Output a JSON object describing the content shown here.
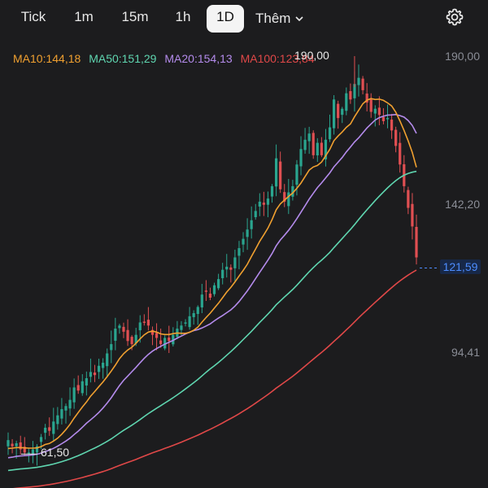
{
  "tabs": [
    {
      "label": "Tick"
    },
    {
      "label": "1m"
    },
    {
      "label": "15m"
    },
    {
      "label": "1h"
    },
    {
      "label": "1D"
    },
    {
      "label": "Thêm"
    }
  ],
  "active_tab": "1D",
  "indicators": {
    "ma10": "MA10:144,18",
    "ma50": "MA50:151,29",
    "ma20": "MA20:154,13",
    "ma100": "MA100:123,84"
  },
  "colors": {
    "background": "#1c1c1e",
    "up": "#2aa58f",
    "down": "#e04f52",
    "ma10": "#f0a030",
    "ma20": "#b48bec",
    "ma50": "#5fd6b0",
    "ma100": "#e04848",
    "current_price": "#4d8dff"
  },
  "price_axis": {
    "top": "190,00",
    "mid": "142,20",
    "low": "94,41",
    "current": "121,59"
  },
  "annotations": {
    "high": "190,00",
    "low": "61,50"
  },
  "icons": {
    "settings": "gear-icon",
    "more": "chevron-down-icon"
  },
  "chart_data": {
    "type": "candlestick",
    "ylim": [
      50,
      196
    ],
    "y_ticks": [
      190.0,
      142.2,
      94.41
    ],
    "current_price": 121.59,
    "high_marker": 190.0,
    "low_marker": 61.5,
    "ma_lines": [
      "MA10",
      "MA20",
      "MA50",
      "MA100"
    ],
    "candle_count": 100,
    "close_path": [
      66,
      64,
      65,
      63,
      62,
      62,
      63,
      64,
      67,
      70,
      69,
      72,
      74,
      76,
      77,
      79,
      83,
      82,
      85,
      86,
      88,
      87,
      90,
      91,
      94,
      97,
      102,
      103,
      101,
      98,
      97,
      100,
      104,
      104,
      103,
      100,
      99,
      97,
      99,
      98,
      100,
      102,
      103,
      104,
      106,
      107,
      109,
      113,
      114,
      112,
      116,
      118,
      121,
      122,
      121,
      125,
      128,
      131,
      134,
      137,
      140,
      143,
      142,
      144,
      148,
      157,
      147,
      143,
      146,
      148,
      155,
      160,
      163,
      165,
      158,
      162,
      158,
      163,
      167,
      176,
      170,
      173,
      178,
      176,
      181,
      183,
      179,
      175,
      172,
      173,
      171,
      169,
      170,
      166,
      161,
      155,
      148,
      141,
      135,
      125
    ]
  }
}
